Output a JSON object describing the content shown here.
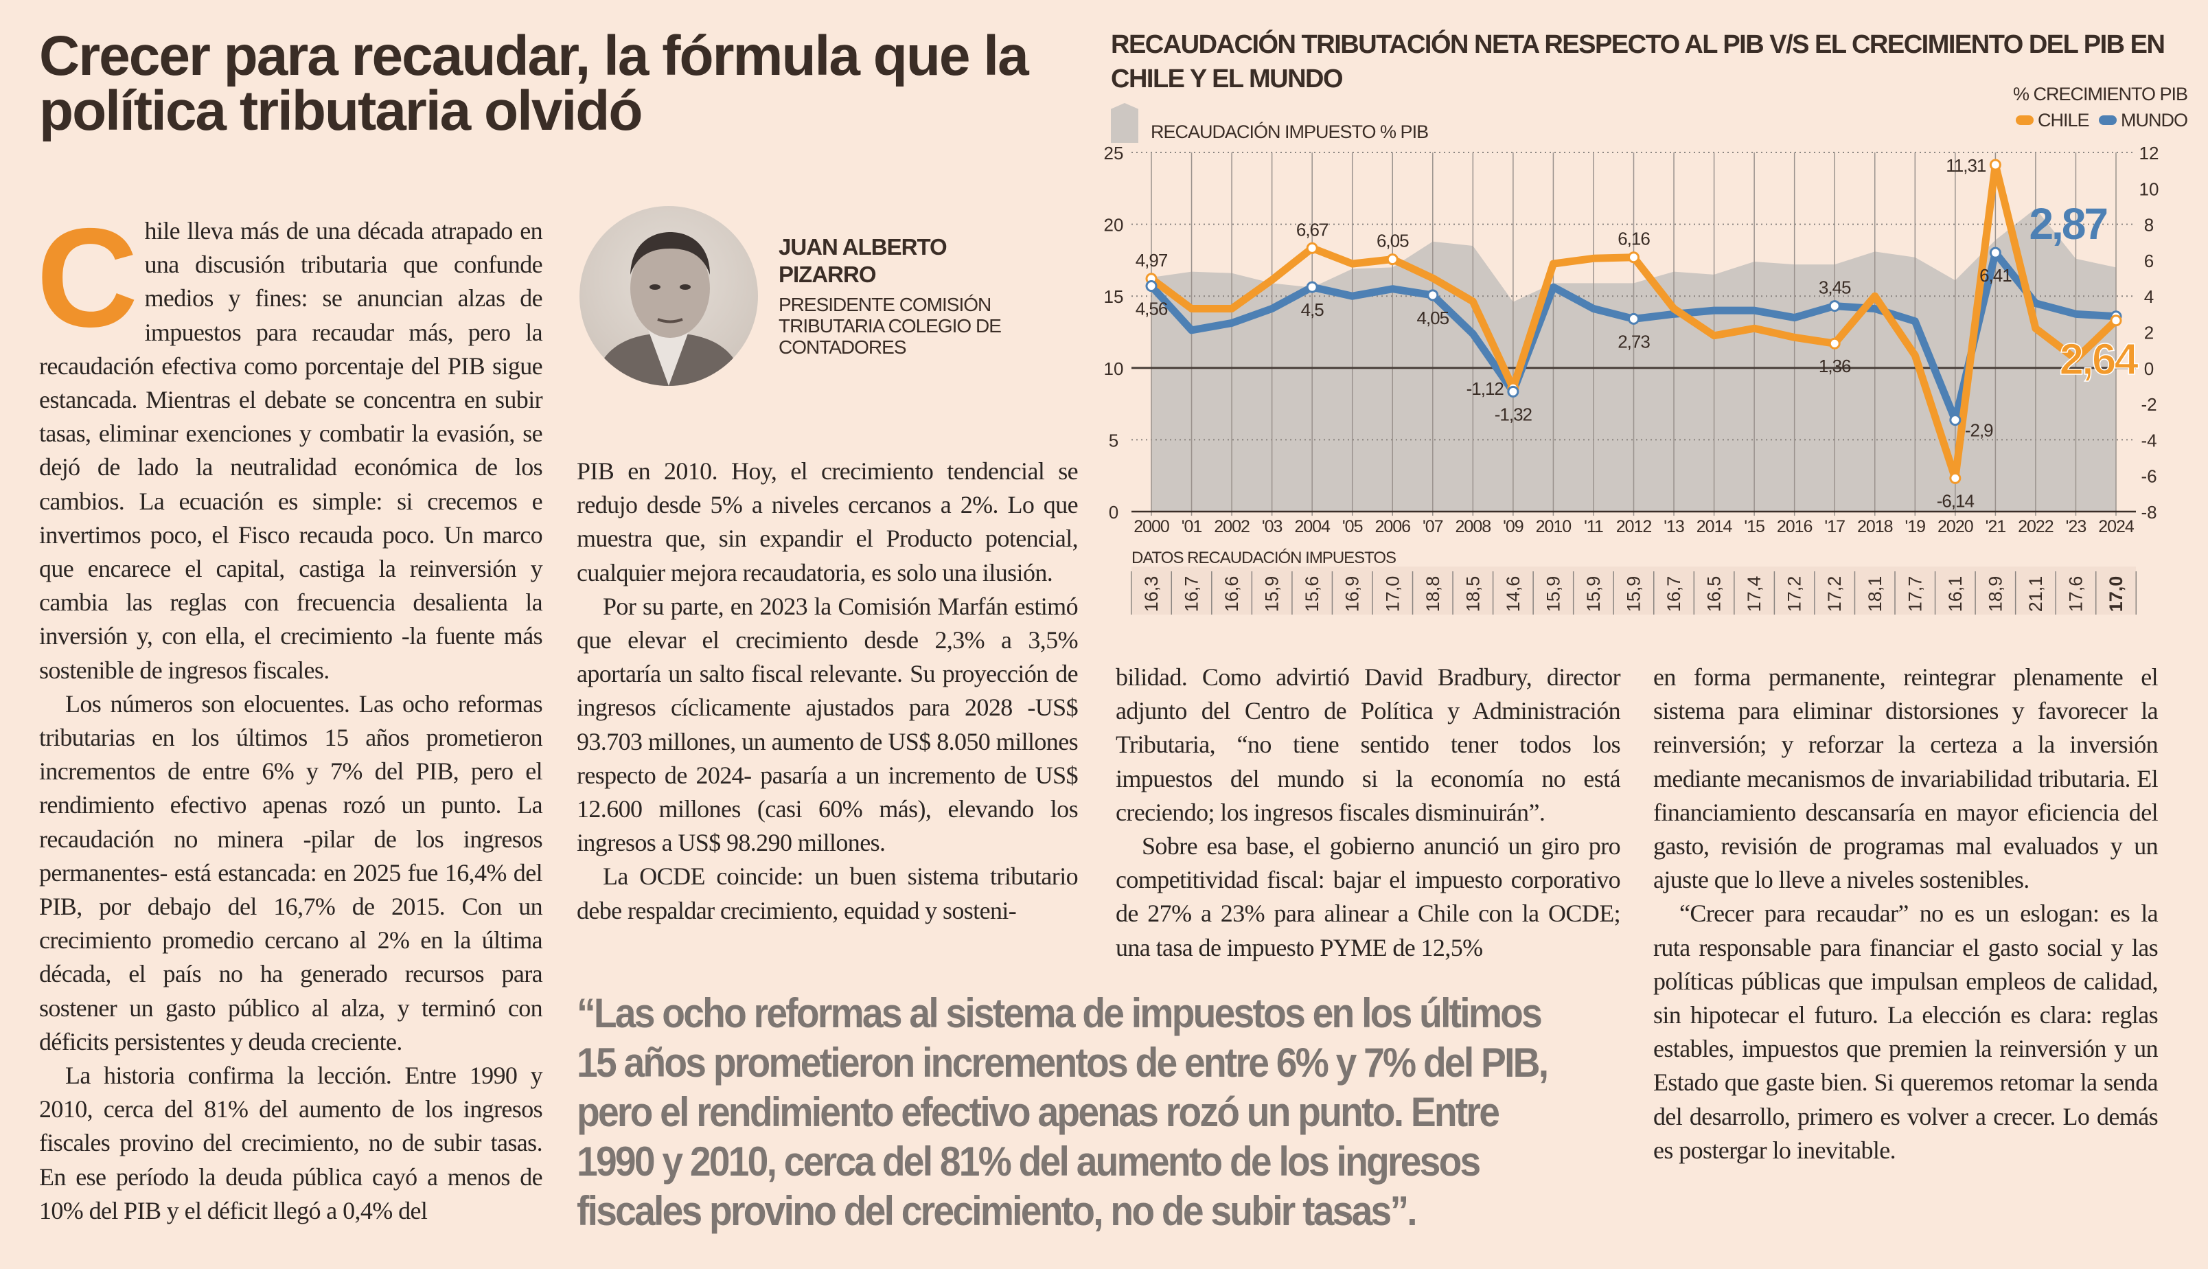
{
  "article": {
    "headline": "Crecer para recaudar, la fórmula que la política tributaria olvidó",
    "drop_cap": "C",
    "author": {
      "name": "JUAN ALBERTO PIZARRO",
      "role": "PRESIDENTE COMISIÓN TRIBUTARIA COLEGIO DE CONTADORES"
    },
    "col1": [
      "hile lleva más de una década atrapado en una discusión tributaria que confunde medios y fines: se anuncian alzas de impuestos para recaudar más, pero la recaudación efectiva como porcentaje del PIB sigue estancada. Mientras el debate se concentra en subir tasas, eliminar exenciones y combatir la evasión, se dejó de lado la neutralidad económica de los cambios. La ecuación es simple: si crecemos e invertimos poco, el Fisco recauda poco. Un marco que encarece el capital, castiga la reinversión y cambia las reglas con frecuencia desalienta la inversión y, con ella, el crecimiento -la fuente más sostenible de ingresos fiscales.",
      "Los números son elocuentes. Las ocho reformas tributarias en los últimos 15 años prometieron incrementos de entre 6% y 7% del PIB, pero el rendimiento efectivo apenas rozó un punto. La recaudación no minera -pilar de los ingresos permanentes- está estancada: en 2025 fue 16,4% del PIB, por debajo del 16,7% de 2015. Con un crecimiento promedio cercano al 2% en la última década, el país no ha generado recursos para sostener un gasto público al alza, y terminó con déficits persistentes y deuda creciente.",
      "La historia confirma la lección. Entre 1990 y 2010, cerca del 81% del aumento de los ingresos fiscales provino del crecimiento, no de subir tasas. En ese período la deuda pública cayó a menos de 10% del PIB y el déficit llegó a 0,4% del"
    ],
    "col2": [
      "PIB en 2010. Hoy, el crecimiento tendencial se redujo desde 5% a niveles cercanos a 2%. Lo que muestra que, sin expandir el Producto potencial, cualquier mejora recaudatoria, es solo una ilusión.",
      "Por su parte, en 2023 la Comisión Marfán estimó que elevar el crecimiento desde 2,3% a 3,5% aportaría un salto fiscal relevante. Su proyección de ingresos cíclicamente ajustados para 2028 -US$ 93.703 millones, un aumento de US$ 8.050 millones respecto de 2024- pasaría a un incremento de US$ 12.600 millones (casi 60% más), elevando los ingresos a US$ 98.290 millones.",
      "La OCDE coincide: un buen sistema tributario debe respaldar crecimiento, equidad y sosteni-"
    ],
    "col3": [
      "bilidad. Como advirtió David Bradbury, director adjunto del Centro de Política y Administración Tributaria, “no tiene sentido tener todos los impuestos del mundo si la economía no está creciendo; los ingresos fiscales disminuirán”.",
      "Sobre esa base, el gobierno anunció un giro pro competitividad fiscal: bajar el impuesto corporativo de 27% a 23% para alinear a Chile con la OCDE; una tasa de impuesto PYME de 12,5%"
    ],
    "col4": [
      "en forma permanente, reintegrar plenamente el sistema para eliminar distorsiones y favorecer la reinversión; y reforzar la certeza a la inversión mediante mecanismos de invariabilidad tributaria. El financiamiento descansaría en mayor eficiencia del gasto, revisión de programas mal evaluados y un ajuste que lo lleve a niveles sostenibles.",
      "“Crecer para recaudar” no es un eslogan: es la ruta responsable para financiar el gasto social y las políticas públicas que impulsan empleos de calidad, sin hipotecar el futuro. La elección es clara: reglas estables, impuestos que premien la reinversión y un Estado que gaste bien. Si queremos retomar la senda del desarrollo, primero es volver a crecer. Lo demás es postergar lo inevitable."
    ],
    "pull_quote": "“Las ocho reformas al sistema de impuestos en los últimos 15 años prometieron incrementos de entre 6% y 7% del PIB, pero el rendimiento efectivo apenas rozó un punto. Entre 1990 y 2010, cerca del 81% del aumento de los ingresos fiscales provino del crecimiento, no de subir tasas”."
  },
  "chart_data": {
    "type": "line",
    "title": "RECAUDACIÓN TRIBUTACIÓN NETA RESPECTO AL PIB V/S EL CRECIMIENTO DEL PIB EN CHILE Y EL MUNDO",
    "legend": {
      "area_label": "RECAUDACIÓN IMPUESTO % PIB",
      "lines_title": "% CRECIMIENTO PIB",
      "chile": "CHILE",
      "mundo": "MUNDO",
      "placement": "top-right"
    },
    "colors": {
      "chile": "#f39a2b",
      "mundo": "#4d80b4",
      "area": "#cdc7c2",
      "background": "#fae8db"
    },
    "x_tick_labels": [
      "2000",
      "'01",
      "2002",
      "'03",
      "2004",
      "'05",
      "2006",
      "'07",
      "2008",
      "'09",
      "2010",
      "'11",
      "2012",
      "'13",
      "2014",
      "'15",
      "2016",
      "'17",
      "2018",
      "'19",
      "2020",
      "'21",
      "2022",
      "'23",
      "2024"
    ],
    "left_axis": {
      "range": [
        0,
        25
      ],
      "ticks": [
        "0",
        "5",
        "10",
        "15",
        "20",
        "25"
      ]
    },
    "right_axis": {
      "range": [
        -8,
        12
      ],
      "ticks": [
        "12",
        "10",
        "8",
        "6",
        "4",
        "2",
        "0",
        "-2",
        "-4",
        "-6",
        "-8"
      ]
    },
    "grid": true,
    "area_series": {
      "name": "RECAUDACIÓN IMPUESTO % PIB",
      "axis": "left",
      "values": [
        16.3,
        16.7,
        16.6,
        15.9,
        15.6,
        16.9,
        17.0,
        18.8,
        18.5,
        14.6,
        15.9,
        15.9,
        15.9,
        16.7,
        16.5,
        17.4,
        17.2,
        17.2,
        18.1,
        17.7,
        16.1,
        18.9,
        21.1,
        17.6,
        17.0
      ]
    },
    "series": [
      {
        "name": "CHILE",
        "axis": "right",
        "values": [
          4.97,
          3.3,
          3.3,
          4.9,
          6.67,
          5.8,
          6.05,
          5.0,
          3.7,
          -1.12,
          5.8,
          6.1,
          6.16,
          3.3,
          1.8,
          2.2,
          1.7,
          1.36,
          4.0,
          0.7,
          -6.14,
          11.31,
          2.2,
          0.5,
          2.64
        ]
      },
      {
        "name": "MUNDO",
        "axis": "right",
        "values": [
          4.56,
          2.1,
          2.5,
          3.3,
          4.5,
          4.0,
          4.4,
          4.05,
          1.9,
          -1.32,
          4.5,
          3.3,
          2.73,
          3.0,
          3.2,
          3.2,
          2.8,
          3.45,
          3.3,
          2.6,
          -2.9,
          6.41,
          3.6,
          3.0,
          2.87
        ]
      }
    ],
    "point_labels": [
      {
        "series": "chile",
        "index": 0,
        "text": "4,97",
        "pos": "above"
      },
      {
        "series": "chile",
        "index": 4,
        "text": "6,67",
        "pos": "above"
      },
      {
        "series": "chile",
        "index": 6,
        "text": "6,05",
        "pos": "above"
      },
      {
        "series": "chile",
        "index": 9,
        "text": "-1,12",
        "pos": "left"
      },
      {
        "series": "chile",
        "index": 12,
        "text": "6,16",
        "pos": "above"
      },
      {
        "series": "chile",
        "index": 17,
        "text": "1,36",
        "pos": "below"
      },
      {
        "series": "chile",
        "index": 20,
        "text": "-6,14",
        "pos": "below"
      },
      {
        "series": "chile",
        "index": 21,
        "text": "11,31",
        "pos": "left"
      },
      {
        "series": "mundo",
        "index": 0,
        "text": "4,56",
        "pos": "below"
      },
      {
        "series": "mundo",
        "index": 4,
        "text": "4,5",
        "pos": "below"
      },
      {
        "series": "mundo",
        "index": 7,
        "text": "4,05",
        "pos": "below"
      },
      {
        "series": "mundo",
        "index": 9,
        "text": "-1,32",
        "pos": "below"
      },
      {
        "series": "mundo",
        "index": 12,
        "text": "2,73",
        "pos": "below"
      },
      {
        "series": "mundo",
        "index": 17,
        "text": "3,45",
        "pos": "above"
      },
      {
        "series": "mundo",
        "index": 20,
        "text": "-2,9",
        "pos": "right"
      },
      {
        "series": "mundo",
        "index": 21,
        "text": "6,41",
        "pos": "below"
      }
    ],
    "final_labels": {
      "mundo": "2,87",
      "chile": "2,64"
    },
    "data_row": {
      "title": "DATOS RECAUDACIÓN IMPUESTOS",
      "values": [
        "16,3",
        "16,7",
        "16,6",
        "15,9",
        "15,6",
        "16,9",
        "17,0",
        "18,8",
        "18,5",
        "14,6",
        "15,9",
        "15,9",
        "15,9",
        "16,7",
        "16,5",
        "17,4",
        "17,2",
        "17,2",
        "18,1",
        "17,7",
        "16,1",
        "18,9",
        "21,1",
        "17,6",
        "17,0"
      ]
    }
  }
}
